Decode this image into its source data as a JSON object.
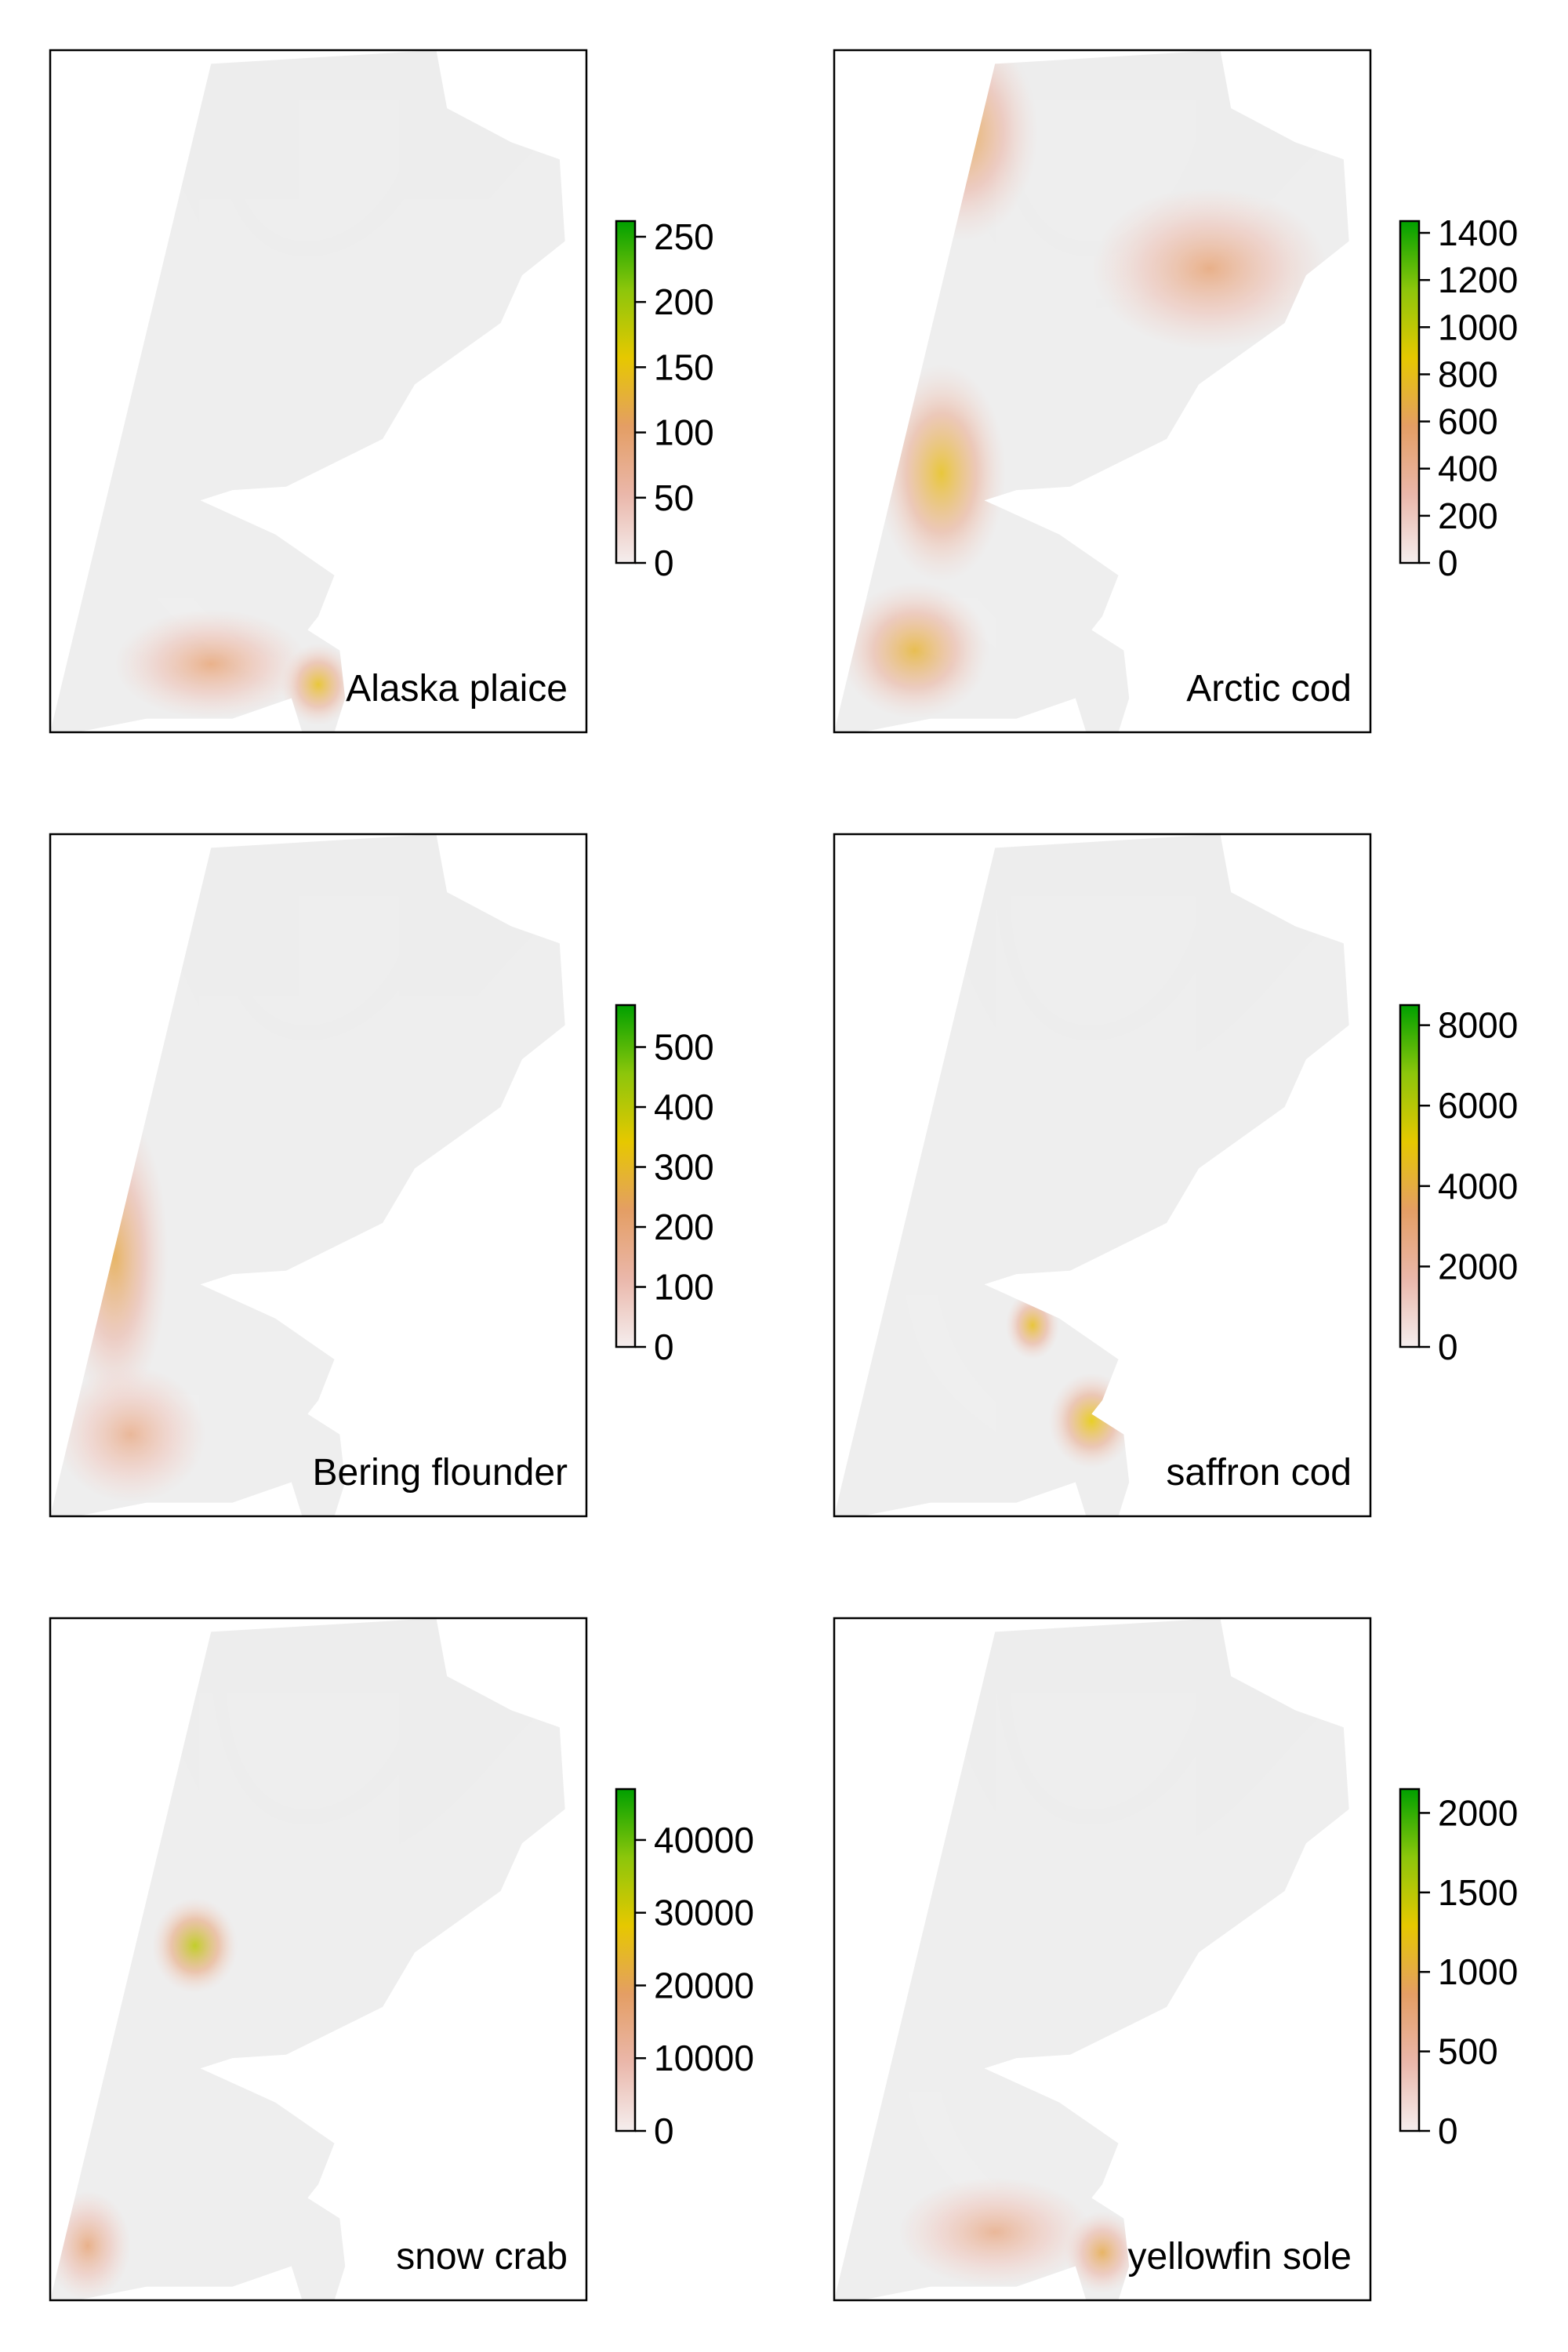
{
  "figure": {
    "colors": {
      "background": "#ffffff",
      "land_gray": "#ececec",
      "frame": "#000000",
      "ramp": [
        "#f5eeee",
        "#eab7aa",
        "#e49e64",
        "#e6c800",
        "#8cc60b",
        "#00a000"
      ]
    }
  },
  "chart_data": [
    {
      "type": "heatmap",
      "panel_label": "Alaska plaice",
      "legend": {
        "ticks": [
          "0",
          "50",
          "100",
          "150",
          "200",
          "250"
        ],
        "tick_values": [
          0,
          50,
          100,
          150,
          200,
          250
        ],
        "max": 262
      },
      "hotspots": [
        {
          "region": "southern shelf",
          "level": 0.35
        },
        {
          "region": "southeast inner shelf",
          "level": 0.55
        }
      ]
    },
    {
      "type": "heatmap",
      "panel_label": "Arctic cod",
      "legend": {
        "ticks": [
          "0",
          "200",
          "400",
          "600",
          "800",
          "1000",
          "1200",
          "1400"
        ],
        "tick_values": [
          0,
          200,
          400,
          600,
          800,
          1000,
          1200,
          1400
        ],
        "max": 1450
      },
      "hotspots": [
        {
          "region": "northwest",
          "level": 0.45
        },
        {
          "region": "western mid-shelf",
          "level": 0.55
        },
        {
          "region": "northeast",
          "level": 0.35
        },
        {
          "region": "southwest",
          "level": 0.5
        }
      ]
    },
    {
      "type": "heatmap",
      "panel_label": "Bering flounder",
      "legend": {
        "ticks": [
          "0",
          "100",
          "200",
          "300",
          "400",
          "500"
        ],
        "tick_values": [
          0,
          100,
          200,
          300,
          400,
          500
        ],
        "max": 570
      },
      "hotspots": [
        {
          "region": "western margin",
          "level": 0.45
        },
        {
          "region": "southwest",
          "level": 0.3
        }
      ]
    },
    {
      "type": "heatmap",
      "panel_label": "saffron cod",
      "legend": {
        "ticks": [
          "0",
          "2000",
          "4000",
          "6000",
          "8000"
        ],
        "tick_values": [
          0,
          2000,
          4000,
          6000,
          8000
        ],
        "max": 8500
      },
      "hotspots": [
        {
          "region": "inner bay",
          "level": 0.55
        },
        {
          "region": "southeast",
          "level": 0.6
        }
      ]
    },
    {
      "type": "heatmap",
      "panel_label": "snow crab",
      "legend": {
        "ticks": [
          "0",
          "10000",
          "20000",
          "30000",
          "40000"
        ],
        "tick_values": [
          0,
          10000,
          20000,
          30000,
          40000
        ],
        "max": 47000
      },
      "hotspots": [
        {
          "region": "mid-shelf",
          "level": 0.7
        },
        {
          "region": "southwest corner",
          "level": 0.35
        }
      ]
    },
    {
      "type": "heatmap",
      "panel_label": "yellowfin sole",
      "legend": {
        "ticks": [
          "0",
          "500",
          "1000",
          "1500",
          "2000"
        ],
        "tick_values": [
          0,
          500,
          1000,
          1500,
          2000
        ],
        "max": 2150
      },
      "hotspots": [
        {
          "region": "southern shelf",
          "level": 0.3
        },
        {
          "region": "southeast inner shelf",
          "level": 0.45
        }
      ]
    }
  ]
}
